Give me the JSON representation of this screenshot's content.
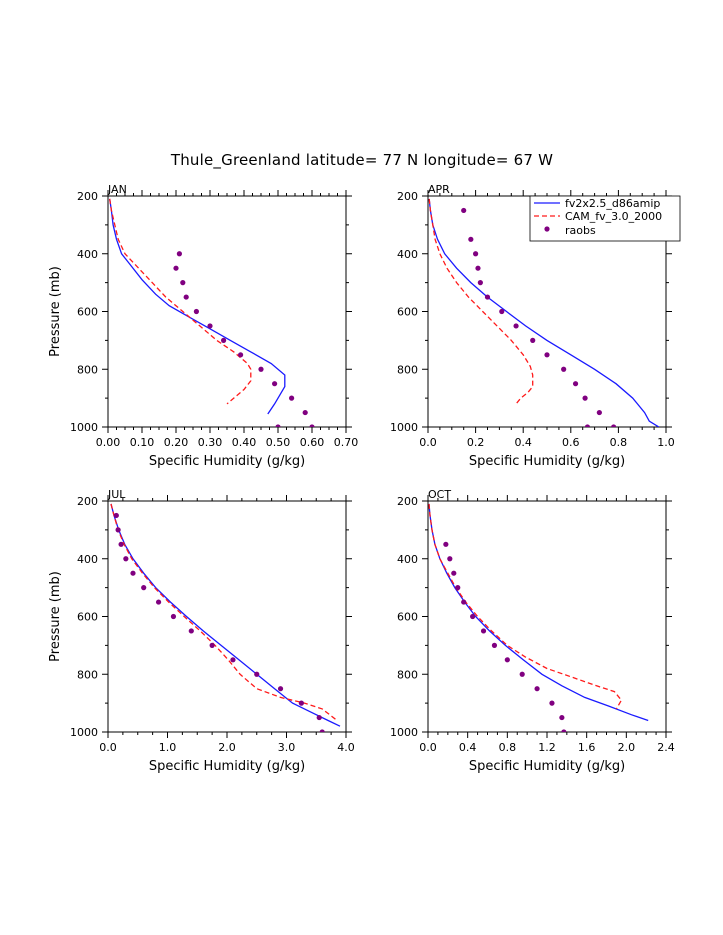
{
  "title": "Thule_Greenland  latitude= 77 N longitude= 67 W",
  "colors": {
    "fv": "#1a1aff",
    "cam": "#ff1a1a",
    "raobs": "#800080"
  },
  "legend": {
    "entries": [
      "fv2x2.5_d86amip",
      "CAM_fv_3.0_2000",
      "raobs"
    ]
  },
  "chart_data": [
    {
      "type": "line",
      "panel": "JAN",
      "xlabel": "Specific Humidity (g/kg)",
      "ylabel": "Pressure (mb)",
      "xlim": [
        0,
        0.7
      ],
      "ylim": [
        1000,
        200
      ],
      "y_reversed": true,
      "xticks": [
        "0.00",
        "0.10",
        "0.20",
        "0.30",
        "0.40",
        "0.50",
        "0.60",
        "0.70"
      ],
      "yticks": [
        "200",
        "400",
        "600",
        "800",
        "1000"
      ],
      "series": [
        {
          "name": "fv2x2.5_d86amip",
          "style": "solid",
          "x": [
            0.005,
            0.01,
            0.015,
            0.025,
            0.04,
            0.06,
            0.1,
            0.14,
            0.18,
            0.24,
            0.3,
            0.36,
            0.42,
            0.48,
            0.52,
            0.52,
            0.49,
            0.47
          ],
          "y": [
            210,
            250,
            300,
            350,
            400,
            430,
            490,
            540,
            580,
            620,
            660,
            700,
            740,
            780,
            820,
            860,
            920,
            955
          ]
        },
        {
          "name": "CAM_fv_3.0_2000",
          "style": "dashed",
          "x": [
            0.005,
            0.01,
            0.02,
            0.03,
            0.05,
            0.09,
            0.13,
            0.17,
            0.22,
            0.27,
            0.32,
            0.37,
            0.41,
            0.42,
            0.42,
            0.4,
            0.37,
            0.35
          ],
          "y": [
            210,
            250,
            300,
            350,
            400,
            450,
            500,
            550,
            600,
            650,
            700,
            740,
            780,
            800,
            840,
            870,
            900,
            920
          ]
        },
        {
          "name": "raobs",
          "style": "dots",
          "x": [
            0.21,
            0.2,
            0.22,
            0.23,
            0.26,
            0.3,
            0.34,
            0.39,
            0.45,
            0.49,
            0.54,
            0.58,
            0.6,
            0.5
          ],
          "y": [
            400,
            450,
            500,
            550,
            600,
            650,
            700,
            750,
            800,
            850,
            900,
            950,
            1000,
            1000
          ]
        }
      ]
    },
    {
      "type": "line",
      "panel": "APR",
      "xlabel": "Specific Humidity (g/kg)",
      "ylabel": "",
      "xlim": [
        0,
        1.0
      ],
      "ylim": [
        1000,
        200
      ],
      "y_reversed": true,
      "xticks": [
        "0.0",
        "0.2",
        "0.4",
        "0.6",
        "0.8",
        "1.0"
      ],
      "yticks": [
        "200",
        "400",
        "600",
        "800",
        "1000"
      ],
      "series": [
        {
          "name": "fv2x2.5_d86amip",
          "style": "solid",
          "x": [
            0.005,
            0.01,
            0.02,
            0.04,
            0.07,
            0.12,
            0.18,
            0.25,
            0.33,
            0.41,
            0.5,
            0.6,
            0.7,
            0.79,
            0.86,
            0.91,
            0.93,
            0.97
          ],
          "y": [
            210,
            250,
            300,
            350,
            400,
            450,
            500,
            550,
            600,
            650,
            700,
            750,
            800,
            850,
            900,
            950,
            980,
            1000
          ]
        },
        {
          "name": "CAM_fv_3.0_2000",
          "style": "dashed",
          "x": [
            0.005,
            0.01,
            0.02,
            0.03,
            0.05,
            0.08,
            0.12,
            0.17,
            0.23,
            0.29,
            0.35,
            0.4,
            0.43,
            0.44,
            0.44,
            0.42,
            0.39,
            0.37
          ],
          "y": [
            210,
            250,
            300,
            350,
            400,
            450,
            500,
            550,
            600,
            650,
            700,
            750,
            790,
            820,
            860,
            880,
            900,
            920
          ]
        },
        {
          "name": "raobs",
          "style": "dots",
          "x": [
            0.15,
            0.18,
            0.2,
            0.21,
            0.22,
            0.25,
            0.31,
            0.37,
            0.44,
            0.5,
            0.57,
            0.62,
            0.66,
            0.72,
            0.78,
            0.67
          ],
          "y": [
            250,
            350,
            400,
            450,
            500,
            550,
            600,
            650,
            700,
            750,
            800,
            850,
            900,
            950,
            1000,
            1000
          ]
        }
      ]
    },
    {
      "type": "line",
      "panel": "JUL",
      "xlabel": "Specific Humidity (g/kg)",
      "ylabel": "Pressure (mb)",
      "xlim": [
        0,
        4.0
      ],
      "ylim": [
        1000,
        200
      ],
      "y_reversed": true,
      "xticks": [
        "0.0",
        "1.0",
        "2.0",
        "3.0",
        "4.0"
      ],
      "yticks": [
        "200",
        "400",
        "600",
        "800",
        "1000"
      ],
      "series": [
        {
          "name": "fv2x2.5_d86amip",
          "style": "solid",
          "x": [
            0.05,
            0.1,
            0.18,
            0.28,
            0.42,
            0.6,
            0.8,
            1.05,
            1.32,
            1.6,
            1.9,
            2.2,
            2.5,
            2.8,
            3.1,
            3.4,
            3.7,
            3.9
          ],
          "y": [
            210,
            250,
            300,
            350,
            400,
            450,
            500,
            550,
            600,
            650,
            700,
            750,
            800,
            850,
            900,
            930,
            960,
            980
          ]
        },
        {
          "name": "CAM_fv_3.0_2000",
          "style": "dashed",
          "x": [
            0.05,
            0.1,
            0.17,
            0.27,
            0.4,
            0.58,
            0.78,
            1.02,
            1.28,
            1.55,
            1.8,
            2.02,
            2.22,
            2.5,
            2.9,
            3.3,
            3.6,
            3.85
          ],
          "y": [
            210,
            250,
            300,
            350,
            400,
            450,
            500,
            550,
            600,
            650,
            700,
            750,
            800,
            850,
            880,
            900,
            920,
            960
          ]
        },
        {
          "name": "raobs",
          "style": "dots",
          "x": [
            0.14,
            0.17,
            0.22,
            0.3,
            0.42,
            0.6,
            0.85,
            1.1,
            1.4,
            1.75,
            2.1,
            2.5,
            2.9,
            3.25,
            3.55,
            3.6
          ],
          "y": [
            250,
            300,
            350,
            400,
            450,
            500,
            550,
            600,
            650,
            700,
            750,
            800,
            850,
            900,
            950,
            1000
          ]
        }
      ]
    },
    {
      "type": "line",
      "panel": "OCT",
      "xlabel": "Specific Humidity (g/kg)",
      "ylabel": "",
      "xlim": [
        0,
        2.4
      ],
      "ylim": [
        1000,
        200
      ],
      "y_reversed": true,
      "xticks": [
        "0.0",
        "0.4",
        "0.8",
        "1.2",
        "1.6",
        "2.0",
        "2.4"
      ],
      "yticks": [
        "200",
        "400",
        "600",
        "800",
        "1000"
      ],
      "series": [
        {
          "name": "fv2x2.5_d86amip",
          "style": "solid",
          "x": [
            0.01,
            0.02,
            0.04,
            0.07,
            0.12,
            0.19,
            0.27,
            0.37,
            0.48,
            0.62,
            0.78,
            0.96,
            1.15,
            1.35,
            1.58,
            1.82,
            2.05,
            2.22
          ],
          "y": [
            210,
            250,
            300,
            350,
            400,
            450,
            500,
            550,
            600,
            650,
            700,
            750,
            800,
            840,
            880,
            910,
            940,
            960
          ]
        },
        {
          "name": "CAM_fv_3.0_2000",
          "style": "dashed",
          "x": [
            0.01,
            0.02,
            0.04,
            0.07,
            0.12,
            0.2,
            0.28,
            0.38,
            0.5,
            0.64,
            0.8,
            0.98,
            1.2,
            1.45,
            1.7,
            1.88,
            1.95,
            1.9
          ],
          "y": [
            210,
            250,
            300,
            350,
            400,
            450,
            500,
            550,
            600,
            650,
            700,
            740,
            780,
            810,
            840,
            860,
            890,
            920
          ]
        },
        {
          "name": "raobs",
          "style": "dots",
          "x": [
            0.18,
            0.22,
            0.26,
            0.3,
            0.36,
            0.45,
            0.56,
            0.67,
            0.8,
            0.95,
            1.1,
            1.25,
            1.35,
            1.37
          ],
          "y": [
            350,
            400,
            450,
            500,
            550,
            600,
            650,
            700,
            750,
            800,
            850,
            900,
            950,
            1000
          ]
        }
      ]
    }
  ]
}
